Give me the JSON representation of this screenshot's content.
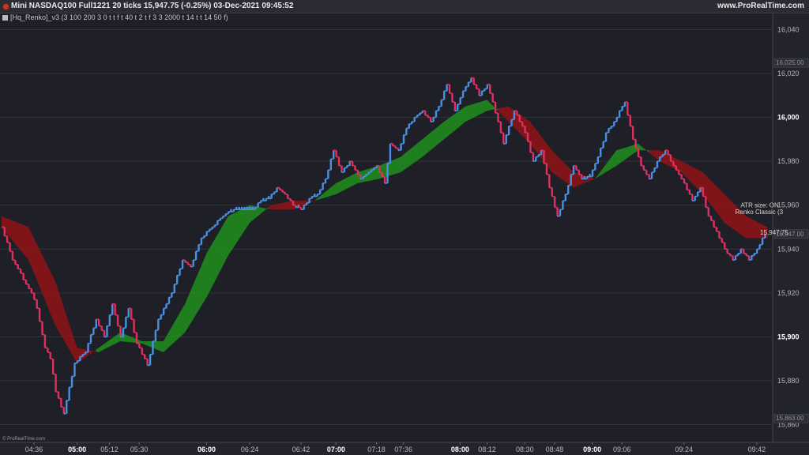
{
  "header": {
    "title": "Mini NASDAQ100 Full1221 20 ticks 15,947.75 (-0.25%) 03-Dec-2021 09:45:52",
    "brand": "www.ProRealTime.com"
  },
  "indicator": {
    "label": "[Hq_Renko]_v3 (3 100 200 3 0 t t f t 40 t 2 t f 3 3 2000 t 14 t t 14 50 f)"
  },
  "footer": {
    "copyright": "© ProRealTime.com"
  },
  "colors": {
    "background": "#1e1f27",
    "up_brick": "#4a90e2",
    "down_brick": "#e0305f",
    "bull_cloud": "#1f8a1f",
    "bear_cloud": "#8b1418",
    "grid": "#34353d"
  },
  "chart_data": {
    "type": "line",
    "title": "",
    "y_ticks": [
      {
        "v": 16040,
        "label": "16,040",
        "bold": false
      },
      {
        "v": 16020,
        "label": "16,020",
        "bold": false
      },
      {
        "v": 16000,
        "label": "16,000",
        "bold": true
      },
      {
        "v": 15980,
        "label": "15,980",
        "bold": false
      },
      {
        "v": 15960,
        "label": "15,960",
        "bold": false
      },
      {
        "v": 15940,
        "label": "15,940",
        "bold": false
      },
      {
        "v": 15920,
        "label": "15,920",
        "bold": false
      },
      {
        "v": 15900,
        "label": "15,900",
        "bold": true
      },
      {
        "v": 15880,
        "label": "15,880",
        "bold": false
      },
      {
        "v": 15860,
        "label": "15,860",
        "bold": false
      }
    ],
    "y_markers": [
      {
        "v": 16025,
        "label": "16,025.00"
      },
      {
        "v": 15947,
        "label": "15,947.00"
      },
      {
        "v": 15863,
        "label": "15,863.00"
      }
    ],
    "ylim": [
      15853,
      16047
    ],
    "x_ticks": [
      {
        "i": 12,
        "label": "04:36",
        "bold": false
      },
      {
        "i": 28,
        "label": "05:00",
        "bold": true
      },
      {
        "i": 40,
        "label": "05:12",
        "bold": false
      },
      {
        "i": 51,
        "label": "05:30",
        "bold": false
      },
      {
        "i": 76,
        "label": "06:00",
        "bold": true
      },
      {
        "i": 92,
        "label": "06:24",
        "bold": false
      },
      {
        "i": 111,
        "label": "06:42",
        "bold": false
      },
      {
        "i": 124,
        "label": "07:00",
        "bold": true
      },
      {
        "i": 139,
        "label": "07:18",
        "bold": false
      },
      {
        "i": 149,
        "label": "07:36",
        "bold": false
      },
      {
        "i": 170,
        "label": "08:00",
        "bold": true
      },
      {
        "i": 180,
        "label": "08:12",
        "bold": false
      },
      {
        "i": 194,
        "label": "08:30",
        "bold": false
      },
      {
        "i": 205,
        "label": "08:48",
        "bold": false
      },
      {
        "i": 219,
        "label": "09:00",
        "bold": true
      },
      {
        "i": 230,
        "label": "09:06",
        "bold": false
      },
      {
        "i": 253,
        "label": "09:24",
        "bold": false
      },
      {
        "i": 280,
        "label": "09:42",
        "bold": false
      }
    ],
    "x_count": 285,
    "brick_size": 5,
    "renko_anchors": [
      [
        0,
        15950
      ],
      [
        4,
        15935
      ],
      [
        11,
        15920
      ],
      [
        13,
        15913
      ],
      [
        16,
        15895
      ],
      [
        18,
        15890
      ],
      [
        20,
        15875
      ],
      [
        23,
        15865
      ],
      [
        27,
        15888
      ],
      [
        31,
        15893
      ],
      [
        35,
        15908
      ],
      [
        38,
        15900
      ],
      [
        41,
        15915
      ],
      [
        44,
        15900
      ],
      [
        47,
        15913
      ],
      [
        50,
        15897
      ],
      [
        54,
        15887
      ],
      [
        58,
        15908
      ],
      [
        63,
        15920
      ],
      [
        67,
        15935
      ],
      [
        70,
        15932
      ],
      [
        74,
        15945
      ],
      [
        78,
        15950
      ],
      [
        82,
        15955
      ],
      [
        86,
        15958
      ],
      [
        89,
        15958
      ],
      [
        93,
        15958
      ],
      [
        96,
        15962
      ],
      [
        99,
        15963
      ],
      [
        102,
        15968
      ],
      [
        105,
        15965
      ],
      [
        108,
        15960
      ],
      [
        111,
        15958
      ],
      [
        114,
        15963
      ],
      [
        117,
        15965
      ],
      [
        120,
        15972
      ],
      [
        123,
        15985
      ],
      [
        126,
        15975
      ],
      [
        129,
        15980
      ],
      [
        133,
        15972
      ],
      [
        136,
        15975
      ],
      [
        139,
        15978
      ],
      [
        142,
        15970
      ],
      [
        144,
        15988
      ],
      [
        147,
        15985
      ],
      [
        150,
        15995
      ],
      [
        153,
        16000
      ],
      [
        156,
        16003
      ],
      [
        159,
        15998
      ],
      [
        162,
        16005
      ],
      [
        165,
        16015
      ],
      [
        168,
        16003
      ],
      [
        171,
        16012
      ],
      [
        174,
        16018
      ],
      [
        177,
        16010
      ],
      [
        180,
        16015
      ],
      [
        184,
        15998
      ],
      [
        186,
        15988
      ],
      [
        190,
        16003
      ],
      [
        194,
        15993
      ],
      [
        197,
        15980
      ],
      [
        200,
        15985
      ],
      [
        203,
        15968
      ],
      [
        206,
        15955
      ],
      [
        209,
        15965
      ],
      [
        212,
        15978
      ],
      [
        215,
        15972
      ],
      [
        218,
        15973
      ],
      [
        221,
        15982
      ],
      [
        224,
        15993
      ],
      [
        227,
        15998
      ],
      [
        231,
        16007
      ],
      [
        234,
        15990
      ],
      [
        237,
        15978
      ],
      [
        240,
        15972
      ],
      [
        243,
        15980
      ],
      [
        246,
        15985
      ],
      [
        249,
        15978
      ],
      [
        252,
        15972
      ],
      [
        256,
        15962
      ],
      [
        259,
        15968
      ],
      [
        262,
        15955
      ],
      [
        265,
        15948
      ],
      [
        268,
        15940
      ],
      [
        271,
        15935
      ],
      [
        274,
        15940
      ],
      [
        277,
        15935
      ],
      [
        280,
        15940
      ],
      [
        283,
        15947
      ]
    ],
    "cloud_fast_anchors": [
      [
        0,
        15950
      ],
      [
        10,
        15935
      ],
      [
        20,
        15905
      ],
      [
        28,
        15888
      ],
      [
        36,
        15895
      ],
      [
        44,
        15902
      ],
      [
        52,
        15898
      ],
      [
        60,
        15898
      ],
      [
        68,
        15915
      ],
      [
        76,
        15938
      ],
      [
        84,
        15955
      ],
      [
        92,
        15960
      ],
      [
        100,
        15958
      ],
      [
        108,
        15958
      ],
      [
        116,
        15962
      ],
      [
        124,
        15970
      ],
      [
        132,
        15975
      ],
      [
        140,
        15978
      ],
      [
        148,
        15982
      ],
      [
        156,
        15990
      ],
      [
        164,
        15998
      ],
      [
        172,
        16005
      ],
      [
        180,
        16008
      ],
      [
        188,
        15998
      ],
      [
        196,
        15988
      ],
      [
        204,
        15975
      ],
      [
        212,
        15968
      ],
      [
        220,
        15972
      ],
      [
        228,
        15985
      ],
      [
        236,
        15988
      ],
      [
        244,
        15980
      ],
      [
        252,
        15975
      ],
      [
        260,
        15965
      ],
      [
        268,
        15952
      ],
      [
        276,
        15945
      ],
      [
        284,
        15945
      ]
    ],
    "cloud_slow_anchors": [
      [
        0,
        15955
      ],
      [
        10,
        15950
      ],
      [
        20,
        15925
      ],
      [
        28,
        15895
      ],
      [
        36,
        15893
      ],
      [
        44,
        15898
      ],
      [
        52,
        15897
      ],
      [
        60,
        15893
      ],
      [
        68,
        15902
      ],
      [
        76,
        15918
      ],
      [
        84,
        15937
      ],
      [
        92,
        15952
      ],
      [
        100,
        15960
      ],
      [
        108,
        15962
      ],
      [
        116,
        15962
      ],
      [
        124,
        15965
      ],
      [
        132,
        15970
      ],
      [
        140,
        15972
      ],
      [
        148,
        15975
      ],
      [
        156,
        15982
      ],
      [
        164,
        15990
      ],
      [
        172,
        15998
      ],
      [
        180,
        16003
      ],
      [
        188,
        16005
      ],
      [
        196,
        15998
      ],
      [
        204,
        15985
      ],
      [
        212,
        15975
      ],
      [
        220,
        15972
      ],
      [
        228,
        15978
      ],
      [
        236,
        15985
      ],
      [
        244,
        15985
      ],
      [
        252,
        15980
      ],
      [
        260,
        15975
      ],
      [
        268,
        15965
      ],
      [
        276,
        15955
      ],
      [
        284,
        15950
      ]
    ],
    "last_price": {
      "i": 283,
      "v": 15947.75,
      "label": "15,947.75"
    },
    "annotations": [
      {
        "i": 274,
        "v": 15959,
        "text": "ATR size: ON"
      },
      {
        "i": 272,
        "v": 15956,
        "text": "Renko Classic (3"
      }
    ],
    "grid": true
  }
}
